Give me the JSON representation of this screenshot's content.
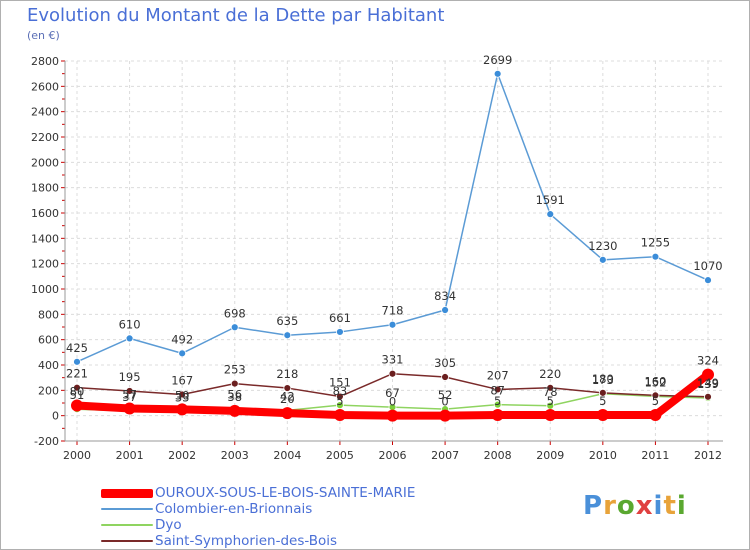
{
  "header": {
    "title": "Evolution du Montant de la Dette par Habitant",
    "unit": "(en €)"
  },
  "logo": {
    "text": "Proxiti",
    "colors": [
      "#4a90d9",
      "#e8a33a",
      "#5aa830",
      "#e04040",
      "#4a90d9",
      "#e8a33a",
      "#5aa830"
    ]
  },
  "chart_data": {
    "type": "line",
    "categories": [
      "2000",
      "2001",
      "2002",
      "2003",
      "2004",
      "2005",
      "2006",
      "2007",
      "2008",
      "2009",
      "2010",
      "2011",
      "2012"
    ],
    "ylim": [
      -200,
      2800
    ],
    "yticks": [
      -200,
      0,
      200,
      400,
      600,
      800,
      1000,
      1200,
      1400,
      1600,
      1800,
      2000,
      2200,
      2400,
      2600,
      2800
    ],
    "grid": true,
    "legend_position": "bottom-left",
    "series": [
      {
        "name": "OUROUX-SOUS-LE-BOIS-SAINTE-MARIE",
        "color": "#ff0000",
        "values": [
          80,
          57,
          50,
          38,
          20,
          5,
          0,
          0,
          5,
          5,
          5,
          5,
          324
        ],
        "labels": [
          "80",
          "57",
          "50",
          "38",
          "20",
          "5",
          "0",
          "0",
          "5",
          "5",
          "5",
          "5",
          "324"
        ]
      },
      {
        "name": "Colombier-en-Brionnais",
        "color": "#5b9bd5",
        "values": [
          425,
          610,
          492,
          698,
          635,
          661,
          718,
          834,
          2699,
          1591,
          1230,
          1255,
          1070
        ],
        "labels": [
          "425",
          "610",
          "492",
          "698",
          "635",
          "661",
          "718",
          "834",
          "2699",
          "1591",
          "1230",
          "1255",
          "1070"
        ]
      },
      {
        "name": "Dyo",
        "color": "#8fd460",
        "values": [
          51,
          37,
          33,
          56,
          42,
          83,
          67,
          52,
          87,
          78,
          173,
          152,
          139
        ],
        "labels": [
          "51",
          "37",
          "33",
          "56",
          "42",
          "83",
          "67",
          "52",
          "87",
          "78",
          "173",
          "152",
          "139"
        ]
      },
      {
        "name": "Saint-Symphorien-des-Bois",
        "color": "#7a2a2a",
        "values": [
          221,
          195,
          167,
          253,
          218,
          151,
          331,
          305,
          207,
          220,
          180,
          160,
          149
        ],
        "labels": [
          "221",
          "195",
          "167",
          "253",
          "218",
          "151",
          "331",
          "305",
          "207",
          "220",
          "180",
          "160",
          "149"
        ]
      }
    ]
  }
}
